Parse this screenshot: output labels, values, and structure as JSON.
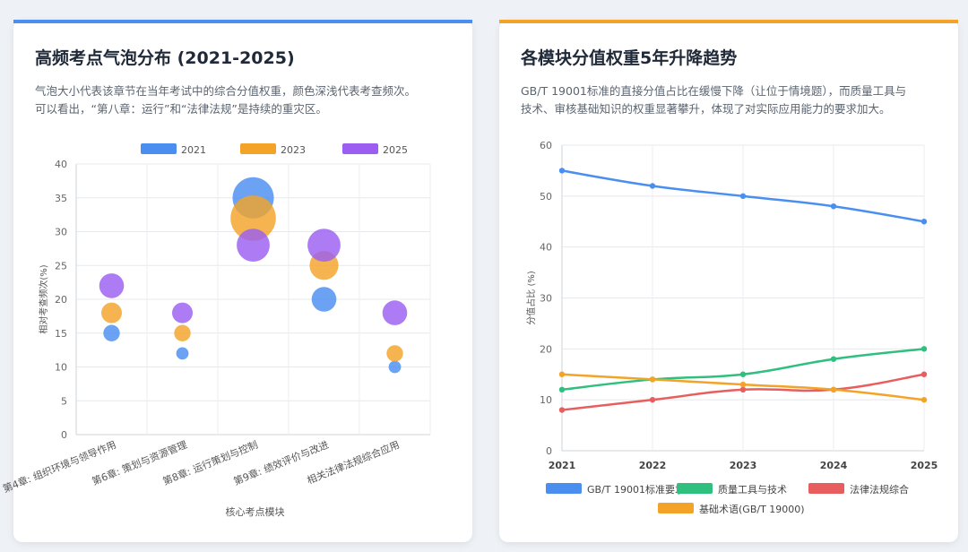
{
  "colors": {
    "blue": "#4a8ef0",
    "orange": "#f3a328",
    "purple": "#9b5ef0",
    "green": "#2fbf7e",
    "red": "#e85d5d"
  },
  "left_card": {
    "title": "高频考点气泡分布 (2021-2025)",
    "desc_line1": "气泡大小代表该章节在当年考试中的综合分值权重，颜色深浅代表考查频次。",
    "desc_line2": "可以看出，“第八章：运行”和“法律法规”是持续的重灾区。"
  },
  "right_card": {
    "title": "各模块分值权重5年升降趋势",
    "desc_line1": "GB/T 19001标准的直接分值占比在缓慢下降（让位于情境题），而质量工具与",
    "desc_line2": "技术、审核基础知识的权重显著攀升，体现了对实际应用能力的要求加大。"
  },
  "chart_data": [
    {
      "type": "scatter",
      "subtype": "bubble",
      "categories": [
        "第4章: 组织环境与领导作用",
        "第6章: 策划与资源管理",
        "第8章: 运行策划与控制",
        "第9章: 绩效评价与改进",
        "相关法律法规综合应用"
      ],
      "series": [
        {
          "name": "2021",
          "color": "#4a8ef0",
          "y": [
            15,
            12,
            35,
            20,
            10
          ],
          "size": [
            4,
            3,
            10,
            6,
            3
          ]
        },
        {
          "name": "2023",
          "color": "#f3a328",
          "y": [
            18,
            15,
            32,
            25,
            12
          ],
          "size": [
            5,
            4,
            11,
            7,
            4
          ]
        },
        {
          "name": "2025",
          "color": "#9b5ef0",
          "y": [
            22,
            18,
            28,
            28,
            18
          ],
          "size": [
            6,
            5,
            8,
            8,
            6
          ]
        }
      ],
      "xlabel": "核心考点模块",
      "ylabel": "相对考查频次(%)",
      "ylim": [
        0,
        40
      ],
      "yticks": [
        0,
        5,
        10,
        15,
        20,
        25,
        30,
        35,
        40
      ],
      "grid": true,
      "legend": "top"
    },
    {
      "type": "line",
      "x": [
        "2021",
        "2022",
        "2023",
        "2024",
        "2025"
      ],
      "series": [
        {
          "name": "GB/T 19001标准要求",
          "color": "#4a8ef0",
          "values": [
            55,
            52,
            50,
            48,
            45
          ]
        },
        {
          "name": "质量工具与技术",
          "color": "#2fbf7e",
          "values": [
            12,
            14,
            15,
            18,
            20
          ]
        },
        {
          "name": "法律法规综合",
          "color": "#e85d5d",
          "values": [
            8,
            10,
            12,
            12,
            15
          ]
        },
        {
          "name": "基础术语(GB/T 19000)",
          "color": "#f3a328",
          "values": [
            15,
            14,
            13,
            12,
            10
          ]
        }
      ],
      "xlabel": "",
      "ylabel": "分值占比 (%)",
      "ylim": [
        0,
        60
      ],
      "yticks": [
        0,
        10,
        20,
        30,
        40,
        50,
        60
      ],
      "grid": true,
      "legend": "bottom"
    }
  ]
}
